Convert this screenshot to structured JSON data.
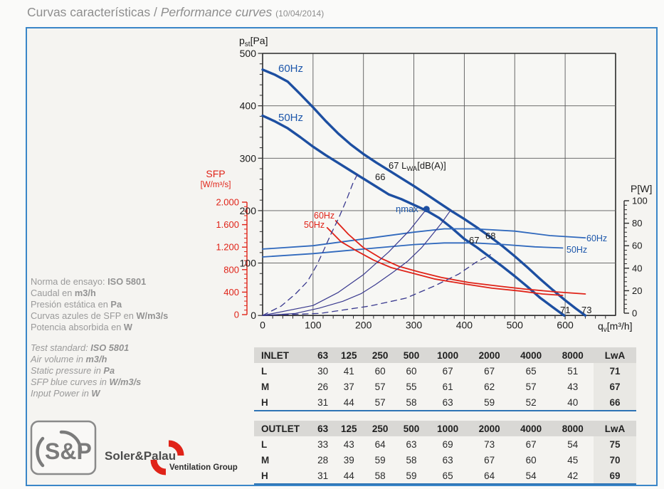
{
  "title": {
    "es": "Curvas características / ",
    "en": "Performance curves ",
    "date": "(10/04/2014)"
  },
  "chart": {
    "axis": {
      "pst_main": "p",
      "pst_sub": "st",
      "pst_unit": "[Pa]",
      "qv_main": "q",
      "qv_sub": "v",
      "qv_unit": "[m³/h]",
      "p_right": "P[W]",
      "sfp_title": "SFP",
      "sfp_unit": "[W/m³/s]"
    },
    "x_ticks": [
      "0",
      "100",
      "200",
      "300",
      "400",
      "500",
      "600"
    ],
    "y_ticks": [
      "500",
      "400",
      "300",
      "200",
      "100",
      "0"
    ],
    "sfp_ticks": [
      "2.000",
      "1.600",
      "1.200",
      "800",
      "400",
      "0"
    ],
    "p_ticks": [
      "100",
      "80",
      "60",
      "40",
      "20",
      "0"
    ],
    "labels": {
      "curve60": "60Hz",
      "curve50": "50Hz",
      "sfp60": "60Hz",
      "sfp50": "50Hz",
      "pow60": "60Hz",
      "pow50": "50Hz",
      "eta": "ηmax",
      "lwa_prefix": "67 L",
      "lwa_sub": "WA",
      "lwa_unit": "[dB(A)]",
      "l66": "66",
      "l67": "67",
      "l68": "68",
      "l71": "71",
      "l73": "73"
    },
    "colors": {
      "curve_blue": "#1d4fa1",
      "power_blue": "#3069bd",
      "system_navy": "#3a3a8f",
      "sfp_red": "#e02318",
      "label_blue": "#1d57ab",
      "grid": "#5a5a5a",
      "border": "#2b2b2b",
      "accent_border": "#3a86c8",
      "table_line": "#2e74b5"
    }
  },
  "chart_data": {
    "type": "line",
    "title": "Curvas características / Performance curves",
    "xlabel": "qv [m³/h]",
    "ylabel_left": "pst [Pa]",
    "ylabel_right": "P [W]",
    "ylabel_sfp": "SFP [W/m³/s]",
    "xlim": [
      0,
      700
    ],
    "ylim_pressure": [
      0,
      500
    ],
    "ylim_power": [
      0,
      100
    ],
    "ylim_sfp": [
      0,
      2000
    ],
    "grid": true,
    "series": [
      {
        "name": "pressure_60Hz",
        "axis": "pst",
        "units": "Pa",
        "points": [
          [
            0,
            469
          ],
          [
            25,
            459
          ],
          [
            50,
            446
          ],
          [
            75,
            422
          ],
          [
            100,
            397
          ],
          [
            125,
            371
          ],
          [
            150,
            347
          ],
          [
            175,
            326
          ],
          [
            200,
            308
          ],
          [
            225,
            292
          ],
          [
            250,
            277
          ],
          [
            275,
            262
          ],
          [
            300,
            247
          ],
          [
            325,
            231
          ],
          [
            350,
            215
          ],
          [
            375,
            199
          ],
          [
            400,
            184
          ],
          [
            425,
            168
          ],
          [
            450,
            151
          ],
          [
            475,
            133
          ],
          [
            500,
            113
          ],
          [
            525,
            92
          ],
          [
            550,
            70
          ],
          [
            575,
            49
          ],
          [
            600,
            29
          ],
          [
            620,
            14
          ],
          [
            640,
            0
          ]
        ]
      },
      {
        "name": "pressure_50Hz",
        "axis": "pst",
        "units": "Pa",
        "points": [
          [
            0,
            381
          ],
          [
            25,
            370
          ],
          [
            50,
            357
          ],
          [
            75,
            340
          ],
          [
            100,
            322
          ],
          [
            125,
            306
          ],
          [
            150,
            291
          ],
          [
            175,
            276
          ],
          [
            200,
            261
          ],
          [
            225,
            246
          ],
          [
            250,
            231
          ],
          [
            275,
            222
          ],
          [
            300,
            211
          ],
          [
            325,
            200
          ],
          [
            350,
            186
          ],
          [
            375,
            167
          ],
          [
            400,
            146
          ],
          [
            425,
            130
          ],
          [
            450,
            112
          ],
          [
            475,
            94
          ],
          [
            500,
            75
          ],
          [
            525,
            55
          ],
          [
            550,
            34
          ],
          [
            575,
            16
          ],
          [
            598,
            0
          ]
        ]
      },
      {
        "name": "power_60Hz",
        "axis": "P",
        "units": "W",
        "points": [
          [
            0,
            57
          ],
          [
            100,
            60
          ],
          [
            200,
            66
          ],
          [
            300,
            72
          ],
          [
            360,
            75
          ],
          [
            420,
            75
          ],
          [
            500,
            73
          ],
          [
            570,
            69
          ],
          [
            640,
            67
          ]
        ]
      },
      {
        "name": "power_50Hz",
        "axis": "P",
        "units": "W",
        "points": [
          [
            0,
            50
          ],
          [
            100,
            53
          ],
          [
            200,
            57
          ],
          [
            300,
            61
          ],
          [
            360,
            62.5
          ],
          [
            420,
            62.5
          ],
          [
            480,
            61
          ],
          [
            540,
            59
          ],
          [
            595,
            58
          ]
        ]
      },
      {
        "name": "sfp_60Hz",
        "axis": "SFP",
        "units": "W/m3/s",
        "points": [
          [
            145,
            1670
          ],
          [
            170,
            1430
          ],
          [
            200,
            1190
          ],
          [
            235,
            1000
          ],
          [
            270,
            860
          ],
          [
            310,
            760
          ],
          [
            355,
            660
          ],
          [
            410,
            570
          ],
          [
            470,
            505
          ],
          [
            520,
            455
          ],
          [
            580,
            405
          ],
          [
            640,
            367
          ]
        ]
      },
      {
        "name": "sfp_50Hz",
        "axis": "SFP",
        "units": "W/m3/s",
        "points": [
          [
            128,
            1545
          ],
          [
            155,
            1300
          ],
          [
            185,
            1140
          ],
          [
            220,
            970
          ],
          [
            255,
            835
          ],
          [
            300,
            730
          ],
          [
            340,
            635
          ],
          [
            400,
            545
          ],
          [
            455,
            470
          ],
          [
            510,
            420
          ],
          [
            555,
            367
          ],
          [
            595,
            342
          ]
        ]
      },
      {
        "name": "system_dashed_A",
        "axis": "pst",
        "style": "dashed",
        "points": [
          [
            0,
            0
          ],
          [
            37,
            18
          ],
          [
            65,
            41
          ],
          [
            89,
            65
          ],
          [
            107,
            95
          ],
          [
            121,
            124
          ],
          [
            135,
            154
          ],
          [
            151,
            186
          ],
          [
            167,
            222
          ],
          [
            179,
            252
          ],
          [
            189,
            271
          ]
        ]
      },
      {
        "name": "system_dashed_B",
        "axis": "pst",
        "style": "dashed",
        "points": [
          [
            0,
            0
          ],
          [
            114,
            4
          ],
          [
            213,
            18
          ],
          [
            284,
            33
          ],
          [
            340,
            56
          ],
          [
            389,
            79
          ],
          [
            424,
            102
          ],
          [
            452,
            116
          ]
        ]
      },
      {
        "name": "eta_max_line",
        "axis": "pst",
        "style": "thin",
        "points": [
          [
            0,
            0
          ],
          [
            100,
            19
          ],
          [
            150,
            44
          ],
          [
            200,
            78
          ],
          [
            250,
            121
          ],
          [
            291,
            162
          ],
          [
            325,
            203
          ]
        ]
      },
      {
        "name": "system_thin_C",
        "axis": "pst",
        "style": "thin",
        "points": [
          [
            0,
            0
          ],
          [
            65,
            4
          ],
          [
            112,
            14
          ],
          [
            159,
            27
          ],
          [
            196,
            42
          ],
          [
            224,
            59
          ],
          [
            258,
            82
          ],
          [
            287,
            103
          ],
          [
            315,
            129
          ],
          [
            333,
            150
          ],
          [
            354,
            175
          ],
          [
            373,
            201
          ]
        ]
      }
    ],
    "eta_max_point": {
      "q": 325,
      "pst": 203
    },
    "noise_labels_dBA": [
      66,
      67,
      67,
      68,
      71,
      73
    ]
  },
  "info_es": [
    {
      "pre": "Norma de ensayo: ",
      "bold": "ISO 5801"
    },
    {
      "pre": "Caudal en ",
      "bold": "m3/h"
    },
    {
      "pre": "Presión estática en ",
      "bold": "Pa"
    },
    {
      "pre": "Curvas azules de SFP en ",
      "bold": "W/m3/s"
    },
    {
      "pre": "Potencia absorbida en ",
      "bold": "W"
    }
  ],
  "info_en": [
    {
      "pre": "Test standard: ",
      "bold": "ISO 5801"
    },
    {
      "pre": "Air volume in ",
      "bold": "m3/h"
    },
    {
      "pre": "Static pressure in ",
      "bold": "Pa"
    },
    {
      "pre": "SFP blue curves in ",
      "bold": "W/m3/s"
    },
    {
      "pre": "Input Power in ",
      "bold": "W"
    }
  ],
  "tables": {
    "inlet": {
      "header": [
        "INLET",
        "63",
        "125",
        "250",
        "500",
        "1000",
        "2000",
        "4000",
        "8000",
        "LwA"
      ],
      "rows": [
        [
          "L",
          30,
          41,
          60,
          60,
          67,
          67,
          65,
          51,
          71
        ],
        [
          "M",
          26,
          37,
          57,
          55,
          61,
          62,
          57,
          43,
          67
        ],
        [
          "H",
          31,
          44,
          57,
          58,
          63,
          59,
          52,
          40,
          66
        ]
      ]
    },
    "outlet": {
      "header": [
        "OUTLET",
        "63",
        "125",
        "250",
        "500",
        "1000",
        "2000",
        "4000",
        "8000",
        "LwA"
      ],
      "rows": [
        [
          "L",
          33,
          43,
          64,
          63,
          69,
          73,
          67,
          54,
          75
        ],
        [
          "M",
          28,
          39,
          59,
          58,
          63,
          67,
          60,
          45,
          70
        ],
        [
          "H",
          31,
          44,
          58,
          59,
          65,
          64,
          54,
          42,
          69
        ]
      ]
    }
  },
  "logo": {
    "glyph": "S&P",
    "brand": "Soler&Palau",
    "group": "Ventilation Group"
  }
}
